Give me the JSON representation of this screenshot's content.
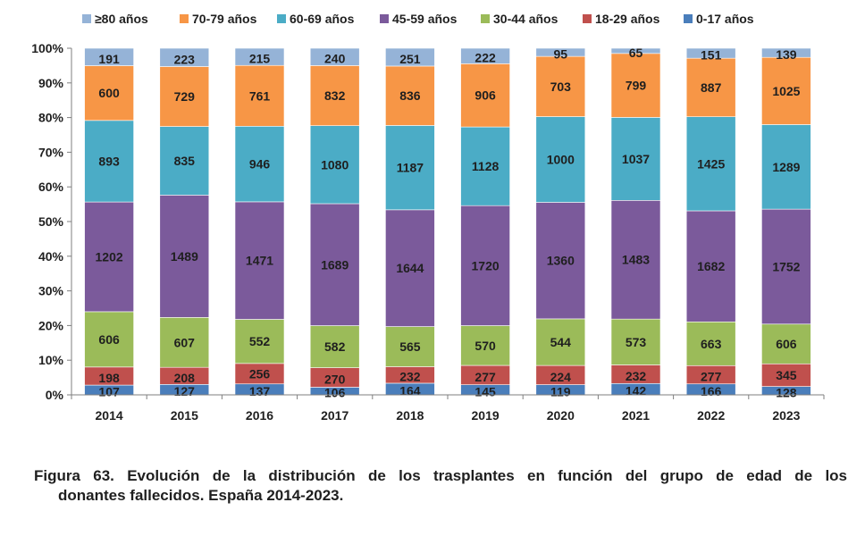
{
  "chart_data": {
    "type": "bar",
    "stacked": true,
    "normalized": true,
    "categories": [
      "2014",
      "2015",
      "2016",
      "2017",
      "2018",
      "2019",
      "2020",
      "2021",
      "2022",
      "2023"
    ],
    "series": [
      {
        "name": "0-17 años",
        "color": "#4a7ebb",
        "values": [
          107,
          127,
          137,
          106,
          164,
          145,
          119,
          142,
          166,
          128
        ]
      },
      {
        "name": "18-29 años",
        "color": "#c0504d",
        "values": [
          198,
          208,
          256,
          270,
          232,
          277,
          224,
          232,
          277,
          345
        ]
      },
      {
        "name": "30-44 años",
        "color": "#9bbb59",
        "values": [
          606,
          607,
          552,
          582,
          565,
          570,
          544,
          573,
          663,
          606
        ]
      },
      {
        "name": "45-59 años",
        "color": "#7b5a9b",
        "values": [
          1202,
          1489,
          1471,
          1689,
          1644,
          1720,
          1360,
          1483,
          1682,
          1752
        ]
      },
      {
        "name": "60-69 años",
        "color": "#4bacc6",
        "values": [
          893,
          835,
          946,
          1080,
          1187,
          1128,
          1000,
          1037,
          1425,
          1289
        ]
      },
      {
        "name": "70-79 años",
        "color": "#f79646",
        "values": [
          600,
          729,
          761,
          832,
          836,
          906,
          703,
          799,
          887,
          1025
        ]
      },
      {
        "name": "≥80 años",
        "color": "#95b3d7",
        "values": [
          191,
          223,
          215,
          240,
          251,
          222,
          95,
          65,
          151,
          139
        ]
      }
    ],
    "legend_order": [
      "≥80 años",
      "70-79 años",
      "60-69 años",
      "45-59 años",
      "30-44 años",
      "18-29 años",
      "0-17 años"
    ],
    "yticks": [
      "0%",
      "10%",
      "20%",
      "30%",
      "40%",
      "50%",
      "60%",
      "70%",
      "80%",
      "90%",
      "100%"
    ],
    "ylim": [
      0,
      100
    ],
    "legend_position": "top",
    "grid": false,
    "title": "",
    "xlabel": "",
    "ylabel": ""
  },
  "caption": {
    "line1": "Figura 63. Evolución de la distribución de los trasplantes en función del grupo de edad de los",
    "line2": "donantes fallecidos. España 2014-2023."
  }
}
